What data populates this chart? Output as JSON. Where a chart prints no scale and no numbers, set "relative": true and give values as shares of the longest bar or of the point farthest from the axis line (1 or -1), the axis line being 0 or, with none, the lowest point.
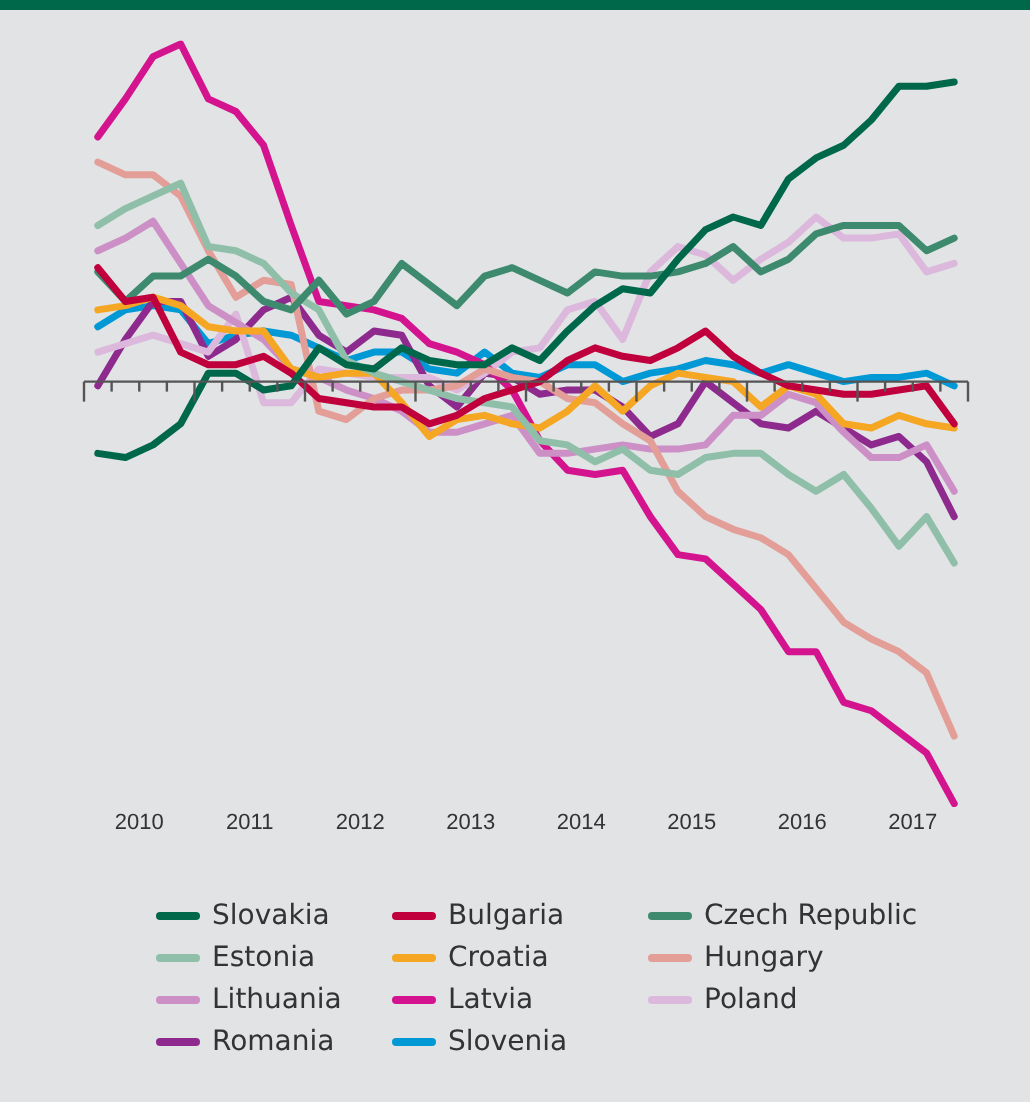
{
  "chart_data": {
    "type": "line",
    "relative": true,
    "legend": "bottom",
    "grid": false,
    "marker": "none",
    "line_style": "solid",
    "x": [
      2010.125,
      2010.375,
      2010.625,
      2010.875,
      2011.125,
      2011.375,
      2011.625,
      2011.875,
      2012.125,
      2012.375,
      2012.625,
      2012.875,
      2013.125,
      2013.375,
      2013.625,
      2013.875,
      2014.125,
      2014.375,
      2014.625,
      2014.875,
      2015.125,
      2015.375,
      2015.625,
      2015.875,
      2016.125,
      2016.375,
      2016.625,
      2016.875,
      2017.125,
      2017.375,
      2017.625,
      2017.875
    ],
    "xlim": [
      2010,
      2018
    ],
    "xticks": [
      {
        "value": 2010.5,
        "label": "2010"
      },
      {
        "value": 2011.5,
        "label": "2011"
      },
      {
        "value": 2012.5,
        "label": "2012"
      },
      {
        "value": 2013.5,
        "label": "2013"
      },
      {
        "value": 2014.5,
        "label": "2014"
      },
      {
        "value": 2015.5,
        "label": "2015"
      },
      {
        "value": 2016.5,
        "label": "2016"
      },
      {
        "value": 2017.5,
        "label": "2017"
      },
      {
        "value": 2010,
        "label": null
      },
      {
        "value": 2010.25,
        "label": null
      },
      {
        "value": 2010.5,
        "label": null
      },
      {
        "value": 2010.75,
        "label": null
      },
      {
        "value": 2011,
        "label": null
      },
      {
        "value": 2011.25,
        "label": null
      },
      {
        "value": 2011.5,
        "label": null
      },
      {
        "value": 2011.75,
        "label": null
      },
      {
        "value": 2012,
        "label": null
      },
      {
        "value": 2012.25,
        "label": null
      },
      {
        "value": 2012.5,
        "label": null
      },
      {
        "value": 2012.75,
        "label": null
      },
      {
        "value": 2013,
        "label": null
      },
      {
        "value": 2013.25,
        "label": null
      },
      {
        "value": 2013.5,
        "label": null
      },
      {
        "value": 2013.75,
        "label": null
      },
      {
        "value": 2014,
        "label": null
      },
      {
        "value": 2014.25,
        "label": null
      },
      {
        "value": 2014.5,
        "label": null
      },
      {
        "value": 2014.75,
        "label": null
      },
      {
        "value": 2015,
        "label": null
      },
      {
        "value": 2015.25,
        "label": null
      },
      {
        "value": 2015.5,
        "label": null
      },
      {
        "value": 2015.75,
        "label": null
      },
      {
        "value": 2016,
        "label": null
      },
      {
        "value": 2016.25,
        "label": null
      },
      {
        "value": 2016.5,
        "label": null
      },
      {
        "value": 2016.75,
        "label": null
      },
      {
        "value": 2017,
        "label": null
      },
      {
        "value": 2017.25,
        "label": null
      },
      {
        "value": 2017.5,
        "label": null
      },
      {
        "value": 2017.75,
        "label": null
      },
      {
        "value": 2018,
        "label": null
      }
    ],
    "series": [
      {
        "name": "Slovakia",
        "color": "#00684a",
        "values": [
          -0.17,
          -0.18,
          -0.15,
          -0.1,
          0.02,
          0.02,
          -0.02,
          -0.01,
          0.08,
          0.04,
          0.03,
          0.08,
          0.05,
          0.04,
          0.04,
          0.08,
          0.05,
          0.12,
          0.18,
          0.22,
          0.21,
          0.29,
          0.36,
          0.39,
          0.37,
          0.48,
          0.53,
          0.56,
          0.62,
          0.7,
          0.7,
          0.71
        ]
      },
      {
        "name": "Bulgaria",
        "color": "#c0003d",
        "values": [
          0.27,
          0.19,
          0.2,
          0.07,
          0.04,
          0.04,
          0.06,
          0.02,
          -0.04,
          -0.05,
          -0.06,
          -0.06,
          -0.1,
          -0.08,
          -0.04,
          -0.02,
          0,
          0.05,
          0.08,
          0.06,
          0.05,
          0.08,
          0.12,
          0.06,
          0.02,
          -0.01,
          -0.02,
          -0.03,
          -0.03,
          -0.02,
          -0.01,
          -0.1
        ]
      },
      {
        "name": "Czech Republic",
        "color": "#3d8a6e",
        "values": [
          0.26,
          0.19,
          0.25,
          0.25,
          0.29,
          0.25,
          0.19,
          0.17,
          0.24,
          0.16,
          0.19,
          0.28,
          0.23,
          0.18,
          0.25,
          0.27,
          0.24,
          0.21,
          0.26,
          0.25,
          0.25,
          0.26,
          0.28,
          0.32,
          0.26,
          0.29,
          0.35,
          0.37,
          0.37,
          0.37,
          0.31,
          0.34
        ]
      },
      {
        "name": "Estonia",
        "color": "#8fbfa9",
        "values": [
          0.37,
          0.41,
          0.44,
          0.47,
          0.32,
          0.31,
          0.28,
          0.21,
          0.17,
          0.05,
          0.02,
          0,
          -0.02,
          -0.04,
          -0.05,
          -0.06,
          -0.14,
          -0.15,
          -0.19,
          -0.16,
          -0.21,
          -0.22,
          -0.18,
          -0.17,
          -0.17,
          -0.22,
          -0.26,
          -0.22,
          -0.3,
          -0.39,
          -0.32,
          -0.43
        ]
      },
      {
        "name": "Croatia",
        "color": "#f5a623",
        "values": [
          0.17,
          0.18,
          0.2,
          0.18,
          0.13,
          0.12,
          0.12,
          0.03,
          0.01,
          0.02,
          0.02,
          -0.05,
          -0.13,
          -0.09,
          -0.08,
          -0.1,
          -0.11,
          -0.07,
          -0.01,
          -0.07,
          -0.01,
          0.02,
          0.01,
          0,
          -0.06,
          -0.01,
          -0.03,
          -0.1,
          -0.11,
          -0.08,
          -0.1,
          -0.11
        ]
      },
      {
        "name": "Hungary",
        "color": "#e39e98",
        "values": [
          0.52,
          0.49,
          0.49,
          0.44,
          0.31,
          0.2,
          0.24,
          0.23,
          -0.07,
          -0.09,
          -0.04,
          -0.02,
          -0.02,
          -0.01,
          0.03,
          0.01,
          0,
          -0.04,
          -0.05,
          -0.1,
          -0.14,
          -0.26,
          -0.32,
          -0.35,
          -0.37,
          -0.41,
          -0.49,
          -0.57,
          -0.61,
          -0.64,
          -0.69,
          -0.84
        ]
      },
      {
        "name": "Lithuania",
        "color": "#cc8fc6",
        "values": [
          0.31,
          0.34,
          0.38,
          0.28,
          0.18,
          0.14,
          0.1,
          0.03,
          0.01,
          -0.02,
          -0.04,
          -0.07,
          -0.12,
          -0.12,
          -0.1,
          -0.08,
          -0.17,
          -0.17,
          -0.16,
          -0.15,
          -0.16,
          -0.16,
          -0.15,
          -0.08,
          -0.08,
          -0.03,
          -0.05,
          -0.12,
          -0.18,
          -0.18,
          -0.15,
          -0.26
        ]
      },
      {
        "name": "Latvia",
        "color": "#d4148e",
        "values": [
          0.58,
          0.67,
          0.77,
          0.8,
          0.67,
          0.64,
          0.56,
          0.37,
          0.19,
          0.18,
          0.17,
          0.15,
          0.09,
          0.07,
          0.04,
          -0.02,
          -0.14,
          -0.21,
          -0.22,
          -0.21,
          -0.32,
          -0.41,
          -0.42,
          -0.48,
          -0.54,
          -0.64,
          -0.64,
          -0.76,
          -0.78,
          -0.83,
          -0.88,
          -1
        ]
      },
      {
        "name": "Poland",
        "color": "#dcb8dc",
        "values": [
          0.07,
          0.09,
          0.11,
          0.09,
          0.07,
          0.16,
          -0.05,
          -0.05,
          0.03,
          0.02,
          0.01,
          0.01,
          0.01,
          -0.02,
          0.02,
          0.07,
          0.08,
          0.17,
          0.19,
          0.1,
          0.26,
          0.32,
          0.3,
          0.24,
          0.29,
          0.33,
          0.39,
          0.34,
          0.34,
          0.35,
          0.26,
          0.28
        ]
      },
      {
        "name": "Romania",
        "color": "#8e2a8e",
        "values": [
          -0.01,
          0.1,
          0.19,
          0.19,
          0.06,
          0.1,
          0.17,
          0.2,
          0.11,
          0.07,
          0.12,
          0.11,
          -0.01,
          -0.06,
          0.02,
          0.01,
          -0.03,
          -0.02,
          -0.02,
          -0.06,
          -0.13,
          -0.1,
          0,
          -0.05,
          -0.1,
          -0.11,
          -0.07,
          -0.11,
          -0.15,
          -0.13,
          -0.19,
          -0.32
        ]
      },
      {
        "name": "Slovenia",
        "color": "#0099d6",
        "values": [
          0.13,
          0.17,
          0.18,
          0.17,
          0.09,
          0.11,
          0.12,
          0.11,
          0.08,
          0.05,
          0.07,
          0.07,
          0.03,
          0.02,
          0.07,
          0.02,
          0.01,
          0.04,
          0.04,
          0,
          0.02,
          0.03,
          0.05,
          0.04,
          0.02,
          0.04,
          0.02,
          0,
          0.01,
          0.01,
          0.02,
          -0.01
        ]
      }
    ]
  }
}
